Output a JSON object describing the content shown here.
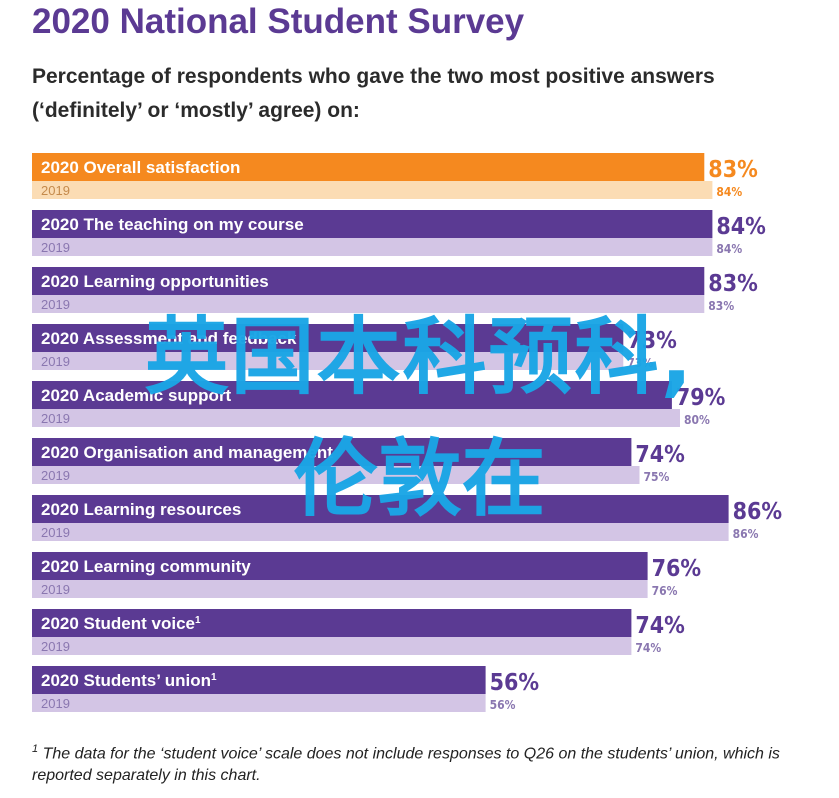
{
  "header": {
    "title": "2020 National Student Survey",
    "subtitle": "Percentage of respondents who gave the two most positive answers (‘definitely’ or ‘mostly’ agree) on:"
  },
  "watermark": {
    "line1": "英国本科预科,",
    "line2": "伦敦在"
  },
  "footnote": {
    "marker": "1",
    "text": "The data for the ‘student voice’ scale does not include responses to Q26 on the students’ union, which is reported separately in this chart."
  },
  "colors": {
    "highlight_2020": "#f5891f",
    "highlight_2019": "#fbdcb4",
    "bar_2020": "#5b3a93",
    "bar_2019": "#d3c5e5",
    "label_2019_on_light": "#8a77b0",
    "label_2019_on_orange": "#c58a4c",
    "value_2020": "#5b3a93",
    "value_2019": "#8a77b0",
    "value_highlight": "#f5891f"
  },
  "chart_data": {
    "type": "bar",
    "orientation": "horizontal",
    "title": "2020 National Student Survey",
    "value_suffix": "%",
    "xlim": [
      0,
      100
    ],
    "categories": [
      "Overall satisfaction",
      "The teaching on my course",
      "Learning opportunities",
      "Assessment and feedback",
      "Academic support",
      "Organisation and management",
      "Learning resources",
      "Learning community",
      "Student voice",
      "Students’ union"
    ],
    "category_footnote_markers": [
      "",
      "",
      "",
      "",
      "",
      "",
      "",
      "",
      "1",
      "1"
    ],
    "series": [
      {
        "name": "2020",
        "values": [
          83,
          84,
          83,
          73,
          79,
          74,
          86,
          76,
          74,
          56
        ]
      },
      {
        "name": "2019",
        "values": [
          84,
          84,
          83,
          73,
          80,
          75,
          86,
          76,
          74,
          56
        ]
      }
    ],
    "highlight_index": 0
  }
}
